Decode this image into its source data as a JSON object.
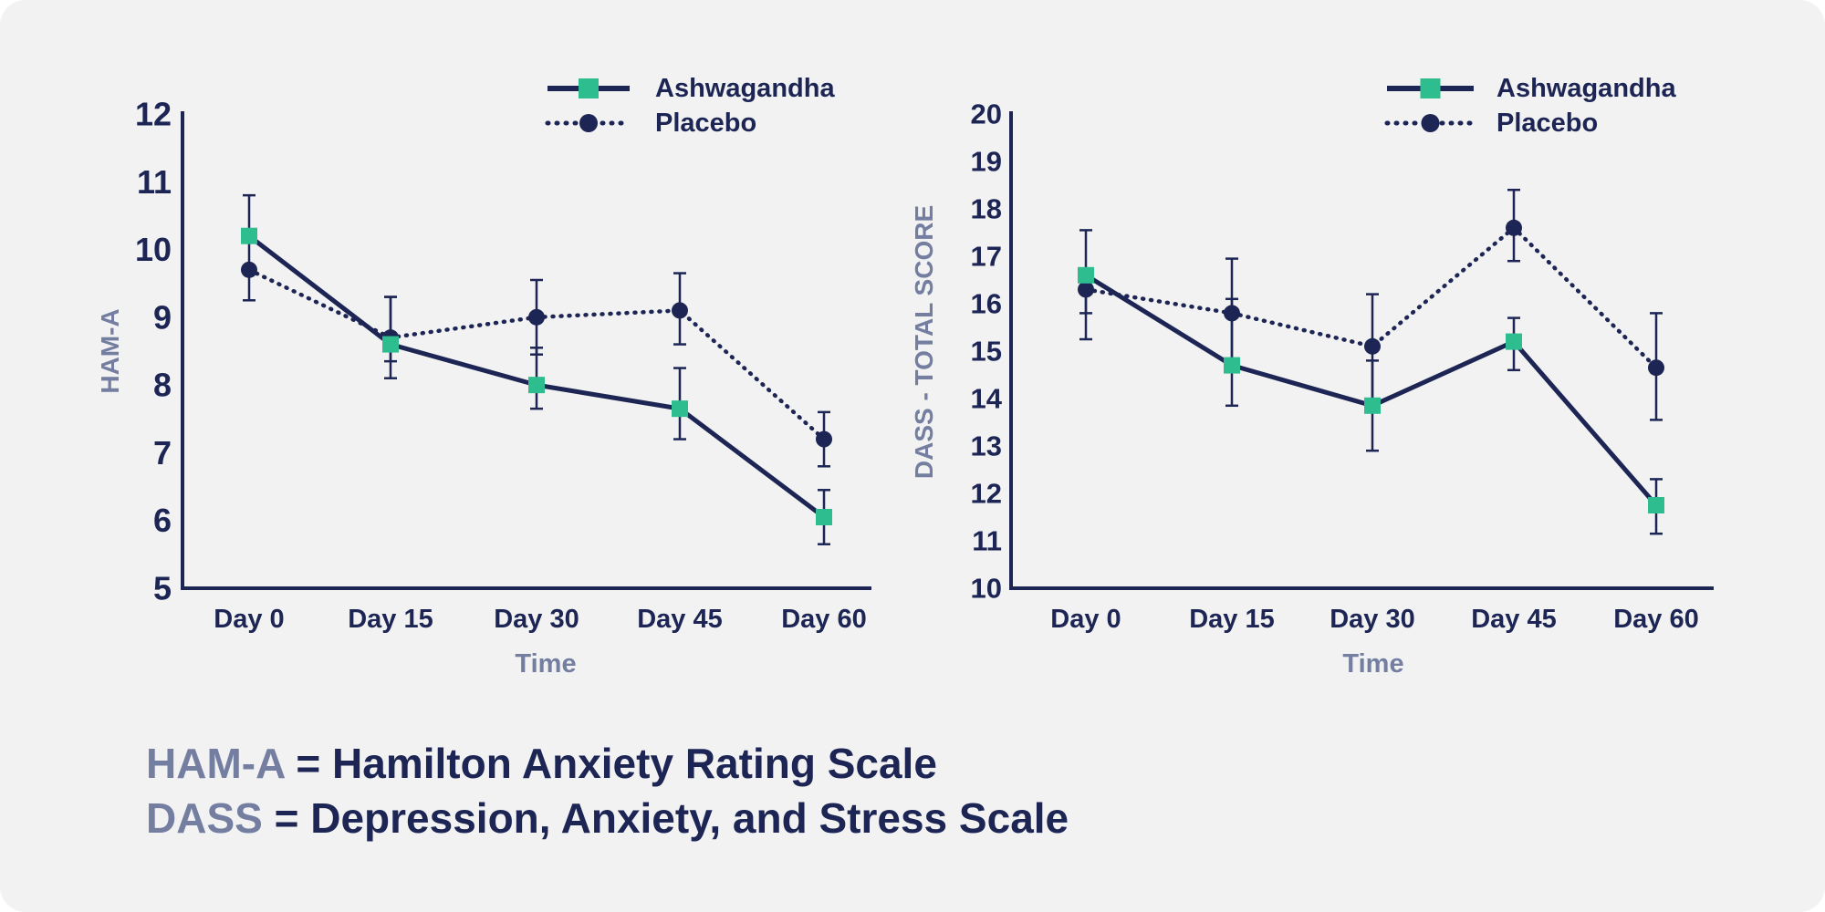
{
  "colors": {
    "background": "#f2f2f3",
    "navy": "#1c2554",
    "teal": "#2ebd8e",
    "axis_label_gray": "#747ea0"
  },
  "chart_data": [
    {
      "type": "line",
      "title": "",
      "xlabel": "Time",
      "ylabel": "HAM-A",
      "categories": [
        "Day 0",
        "Day 15",
        "Day 30",
        "Day 45",
        "Day 60"
      ],
      "ylim": [
        5,
        12
      ],
      "yticks": [
        "5",
        "6",
        "7",
        "8",
        "9",
        "10",
        "11",
        "12"
      ],
      "legend_position": "top-right",
      "series": [
        {
          "name": "Ashwagandha",
          "style": "solid",
          "marker": "square",
          "values": [
            10.2,
            8.6,
            8.0,
            7.65,
            6.05
          ],
          "err_low": [
            null,
            8.1,
            7.65,
            7.2,
            5.65
          ],
          "err_high": [
            null,
            9.3,
            8.55,
            8.25,
            6.45
          ]
        },
        {
          "name": "Placebo",
          "style": "dotted",
          "marker": "circle",
          "values": [
            9.7,
            8.7,
            9.0,
            9.1,
            7.2
          ],
          "err_low": [
            9.25,
            8.35,
            8.45,
            8.6,
            6.8
          ],
          "err_high": [
            10.8,
            9.3,
            9.55,
            9.65,
            7.6
          ]
        }
      ]
    },
    {
      "type": "line",
      "title": "",
      "xlabel": "Time",
      "ylabel": "DASS - TOTAL SCORE",
      "categories": [
        "Day 0",
        "Day 15",
        "Day 30",
        "Day 45",
        "Day 60"
      ],
      "ylim": [
        10,
        20
      ],
      "yticks": [
        "10",
        "11",
        "12",
        "13",
        "14",
        "15",
        "16",
        "17",
        "18",
        "19",
        "20"
      ],
      "legend_position": "top-right",
      "series": [
        {
          "name": "Ashwagandha",
          "style": "solid",
          "marker": "square",
          "values": [
            16.6,
            14.7,
            13.85,
            15.2,
            11.75
          ],
          "err_low": [
            15.8,
            13.85,
            12.9,
            14.6,
            11.15
          ],
          "err_high": [
            null,
            16.1,
            14.8,
            15.7,
            12.3
          ]
        },
        {
          "name": "Placebo",
          "style": "dotted",
          "marker": "circle",
          "values": [
            16.3,
            15.8,
            15.1,
            17.6,
            14.65
          ],
          "err_low": [
            15.25,
            14.8,
            13.85,
            16.9,
            13.55
          ],
          "err_high": [
            17.55,
            16.95,
            16.2,
            18.4,
            15.8
          ]
        }
      ]
    }
  ],
  "footnotes": [
    {
      "abbr": "HAM-A",
      "text": "= Hamilton Anxiety Rating Scale"
    },
    {
      "abbr": "DASS",
      "text": "= Depression, Anxiety, and Stress Scale"
    }
  ]
}
